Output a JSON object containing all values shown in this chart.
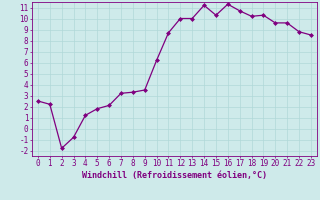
{
  "x": [
    0,
    1,
    2,
    3,
    4,
    5,
    6,
    7,
    8,
    9,
    10,
    11,
    12,
    13,
    14,
    15,
    16,
    17,
    18,
    19,
    20,
    21,
    22,
    23
  ],
  "y": [
    2.5,
    2.2,
    -1.8,
    -0.8,
    1.2,
    1.8,
    2.1,
    3.2,
    3.3,
    3.5,
    6.2,
    8.7,
    10.0,
    10.0,
    11.2,
    10.3,
    11.3,
    10.7,
    10.2,
    10.3,
    9.6,
    9.6,
    8.8,
    8.5
  ],
  "line_color": "#800080",
  "marker": "D",
  "marker_size": 2.0,
  "bg_color": "#ceeaea",
  "grid_color": "#b0d8d8",
  "xlabel": "Windchill (Refroidissement éolien,°C)",
  "xlim": [
    -0.5,
    23.5
  ],
  "ylim": [
    -2.5,
    11.5
  ],
  "yticks": [
    -2,
    -1,
    0,
    1,
    2,
    3,
    4,
    5,
    6,
    7,
    8,
    9,
    10,
    11
  ],
  "xticks": [
    0,
    1,
    2,
    3,
    4,
    5,
    6,
    7,
    8,
    9,
    10,
    11,
    12,
    13,
    14,
    15,
    16,
    17,
    18,
    19,
    20,
    21,
    22,
    23
  ],
  "tick_color": "#800080",
  "label_color": "#800080",
  "tick_font_size": 5.5,
  "xlabel_font_size": 6.0,
  "line_width": 0.9,
  "spine_color": "#800080"
}
